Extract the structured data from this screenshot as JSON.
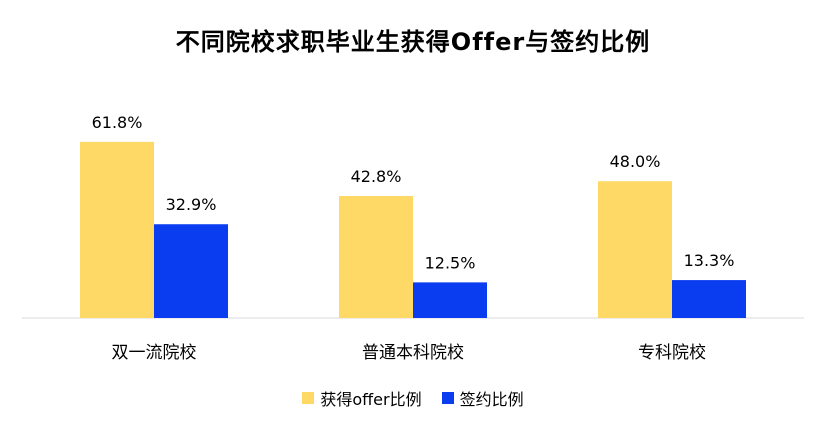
{
  "chart_data": {
    "type": "bar",
    "title": "不同院校求职毕业生获得Offer与签约比例",
    "categories": [
      "双一流院校",
      "普通本科院校",
      "专科院校"
    ],
    "series": [
      {
        "name": "获得offer比例",
        "values": [
          61.8,
          42.8,
          48.0
        ],
        "labels": [
          "61.8%",
          "42.8%",
          "48.0%"
        ],
        "color": "#FFD966"
      },
      {
        "name": "签约比例",
        "values": [
          32.9,
          12.5,
          13.3
        ],
        "labels": [
          "32.9%",
          "12.5%",
          "13.3%"
        ],
        "color": "#0A3CF0"
      }
    ],
    "ylim": [
      0,
      100
    ],
    "grid": false,
    "legend_position": "bottom",
    "xlabel": "",
    "ylabel": ""
  }
}
